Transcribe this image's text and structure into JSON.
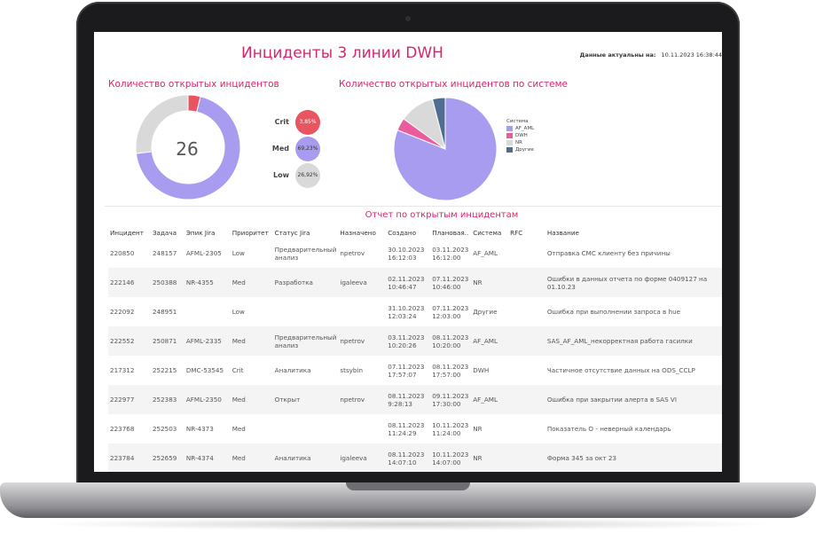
{
  "dashboard": {
    "title": "Инциденты 3 линии DWH",
    "asof_label": "Данные актуальны на:",
    "asof_value": "10.11.2023 16:38:44"
  },
  "open_incidents": {
    "title": "Количество открытых инцидентов",
    "total": "26",
    "priorities": [
      {
        "label": "Crit",
        "value": "3,85%",
        "color": "#e8545f"
      },
      {
        "label": "Med",
        "value": "69,23%",
        "color": "#a89cf0"
      },
      {
        "label": "Low",
        "value": "26,92%",
        "color": "#d9d9d9"
      }
    ]
  },
  "by_system": {
    "title": "Количество открытых инцидентов по системе",
    "legend_title": "Система",
    "legend": [
      {
        "label": "AF_AML",
        "color": "#a89cf0"
      },
      {
        "label": "DWH",
        "color": "#ea5c9c"
      },
      {
        "label": "NR",
        "color": "#d9d9d9"
      },
      {
        "label": "Другие",
        "color": "#4f6d8f"
      }
    ]
  },
  "chart_data": [
    {
      "type": "pie",
      "title": "Количество открытых инцидентов",
      "categories": [
        "Crit",
        "Med",
        "Low"
      ],
      "values": [
        3.85,
        69.23,
        26.92
      ]
    },
    {
      "type": "pie",
      "title": "Количество открытых инцидентов по системе",
      "categories": [
        "AF_AML",
        "DWH",
        "NR",
        "Другие"
      ],
      "values": [
        81.0,
        4.0,
        11.0,
        4.0
      ]
    }
  ],
  "report": {
    "title": "Отчет по открытым инцидентам",
    "columns": [
      "Инцидент",
      "Задача",
      "Эпик Jira",
      "Приоритет",
      "Статус Jira",
      "Назначено",
      "Создано",
      "Плановая..",
      "Система",
      "RFC",
      "Название"
    ],
    "rows": [
      [
        "220850",
        "248157",
        "AFML-2305",
        "Low",
        "Предварительный анализ",
        "npetrov",
        "30.10.2023 16:12:03",
        "03.11.2023 16:12:00",
        "AF_AML",
        "",
        "Отправка СМС клиенту без причины"
      ],
      [
        "222146",
        "250388",
        "NR-4355",
        "Med",
        "Разработка",
        "igaleeva",
        "02.11.2023 10:46:47",
        "07.11.2023 10:46:00",
        "NR",
        "",
        "Ошибки в данных отчета по форме 0409127 на 01.10.23"
      ],
      [
        "222092",
        "248951",
        "",
        "Low",
        "",
        "",
        "31.10.2023 12:03:24",
        "07.11.2023 12:03:00",
        "Другие",
        "",
        "Ошибка при выполнении запроса в hue"
      ],
      [
        "222552",
        "250871",
        "AFML-2335",
        "Med",
        "Предварительный анализ",
        "npetrov",
        "03.11.2023 10:20:26",
        "08.11.2023 10:20:00",
        "AF_AML",
        "",
        "SAS_AF_AML_некорректная работа гасилки"
      ],
      [
        "217312",
        "252215",
        "DMC-53545",
        "Crit",
        "Аналитика",
        "stsybin",
        "07.11.2023 17:57:07",
        "08.11.2023 17:57:00",
        "DWH",
        "",
        "Частичное отсутствие данных на ODS_CCLP"
      ],
      [
        "222977",
        "252383",
        "AFML-2350",
        "Med",
        "Открыт",
        "npetrov",
        "08.11.2023 9:28:13",
        "09.11.2023 17:30:00",
        "AF_AML",
        "",
        "Ошибка при закрытии алерта в SAS VI"
      ],
      [
        "223768",
        "252503",
        "NR-4373",
        "Med",
        "",
        "",
        "08.11.2023 11:24:29",
        "10.11.2023 11:24:00",
        "NR",
        "",
        "Показатель О - неверный календарь"
      ],
      [
        "223784",
        "252659",
        "NR-4374",
        "Med",
        "Аналитика",
        "igaleeva",
        "08.11.2023 14:07:10",
        "10.11.2023 14:07:00",
        "NR",
        "",
        "Форма 345 за окт 23"
      ]
    ]
  }
}
